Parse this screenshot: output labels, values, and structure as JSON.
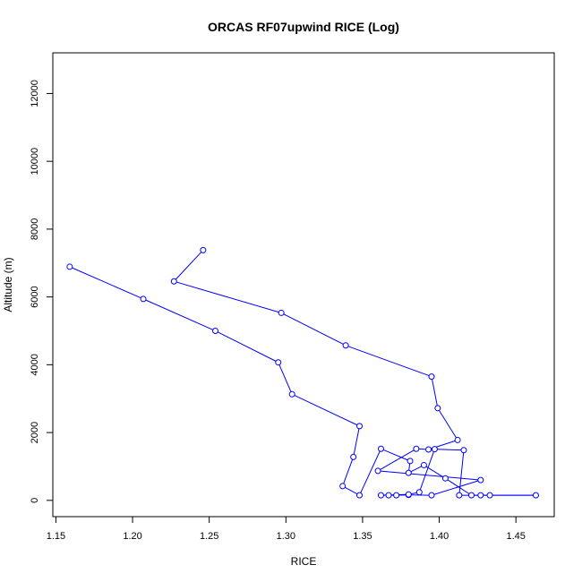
{
  "chart_data": {
    "type": "line",
    "title": "ORCAS RF07upwind RICE (Log)",
    "xlabel": "RICE",
    "ylabel": "Altitude (m)",
    "xlim": [
      1.148,
      1.475
    ],
    "ylim": [
      -480,
      13200
    ],
    "xticks": [
      1.15,
      1.2,
      1.25,
      1.3,
      1.35,
      1.4,
      1.45
    ],
    "xtick_labels": [
      "1.15",
      "1.20",
      "1.25",
      "1.30",
      "1.35",
      "1.40",
      "1.45"
    ],
    "yticks": [
      0,
      2000,
      4000,
      6000,
      8000,
      10000,
      12000
    ],
    "ytick_labels": [
      "0",
      "2000",
      "4000",
      "6000",
      "8000",
      "10000",
      "12000"
    ],
    "grid": false,
    "legend": "none",
    "series": [
      {
        "color": "#0000ff",
        "marker": "open-circle",
        "x": [
          1.246,
          1.227,
          1.297,
          1.339,
          1.395,
          1.399,
          1.412,
          1.393,
          1.385,
          1.36,
          1.427,
          1.395,
          1.38,
          1.372,
          1.367,
          1.362,
          1.38,
          1.387,
          1.397,
          1.416,
          1.413,
          1.427,
          1.433,
          1.463,
          1.421,
          1.404,
          1.39,
          1.38,
          1.381,
          1.362,
          1.348,
          1.337,
          1.344,
          1.348,
          1.304,
          1.295,
          1.254,
          1.207,
          1.159
        ],
        "y": [
          7380,
          6460,
          5530,
          4570,
          3650,
          2720,
          1780,
          1500,
          1520,
          870,
          600,
          150,
          160,
          150,
          150,
          150,
          175,
          240,
          1510,
          1480,
          150,
          150,
          150,
          150,
          150,
          650,
          1040,
          810,
          1160,
          1520,
          150,
          420,
          1280,
          2190,
          3130,
          4070,
          5000,
          5940,
          6890
        ]
      }
    ]
  }
}
